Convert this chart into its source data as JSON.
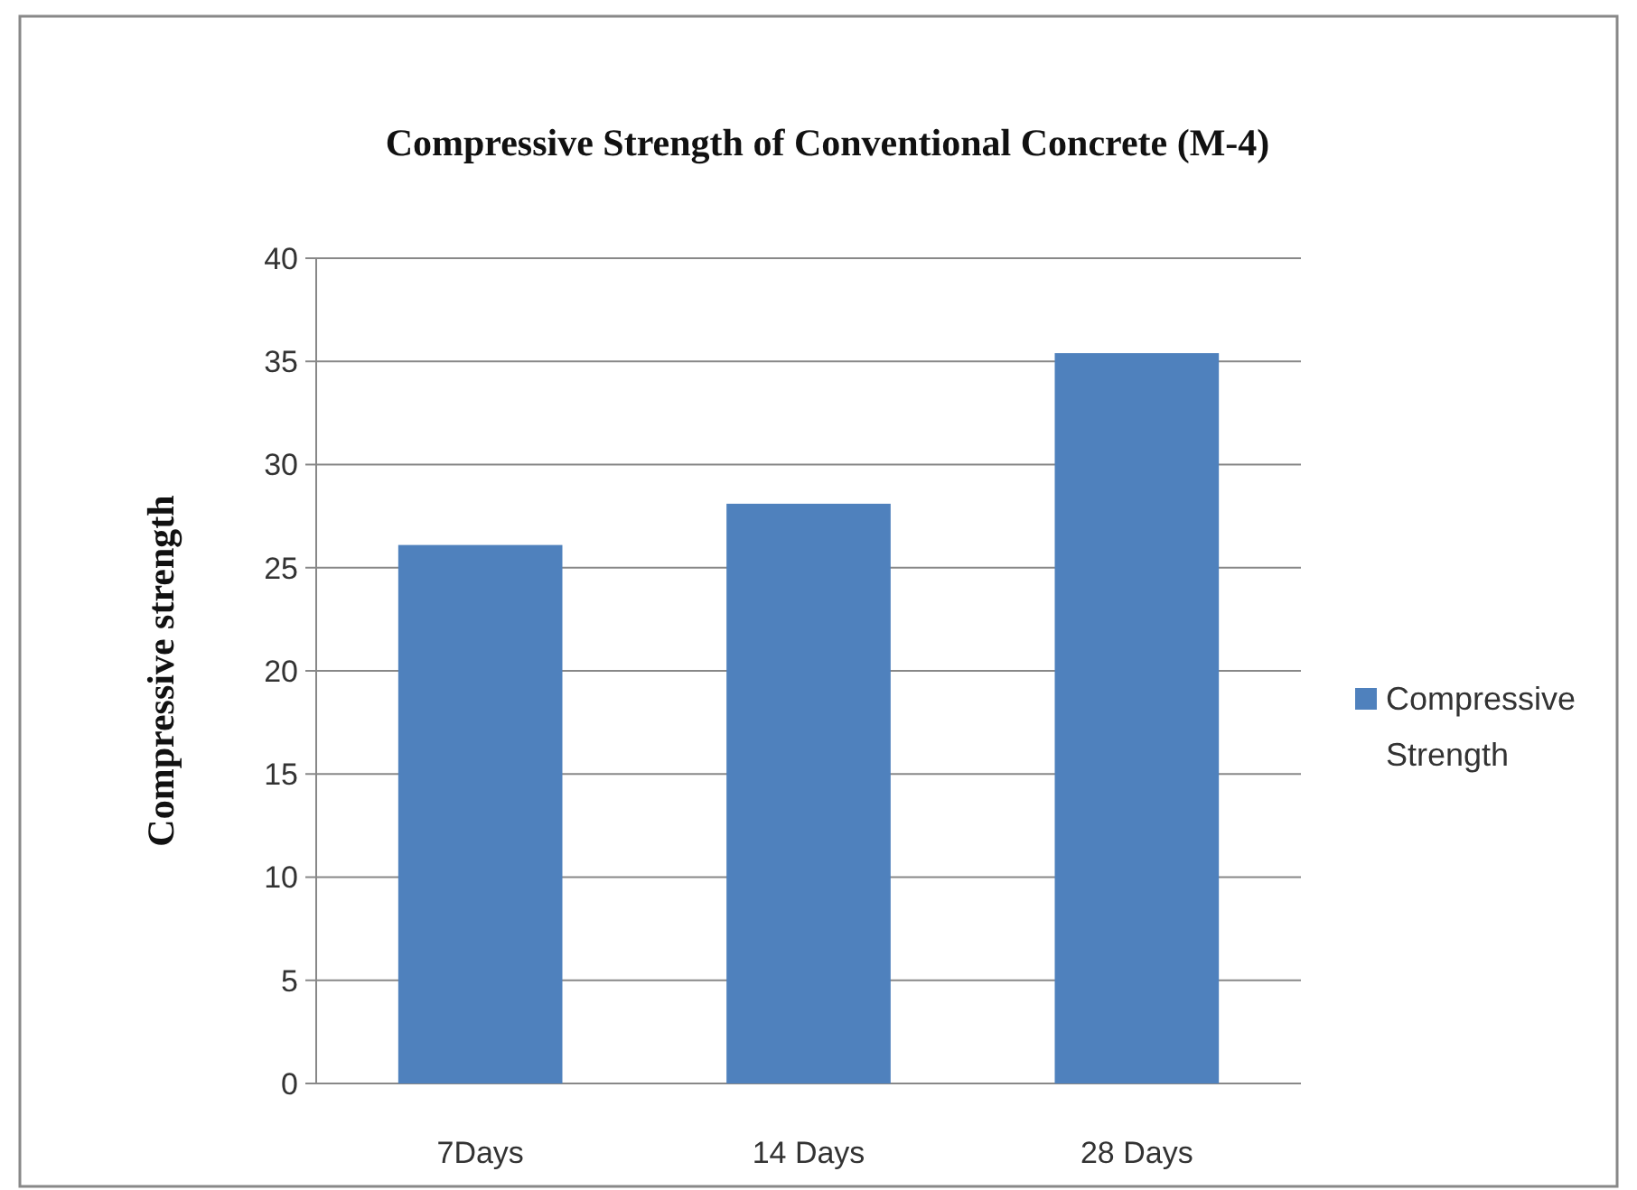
{
  "chart_data": {
    "type": "bar",
    "title": "Compressive Strength of Conventional Concrete (M-4)",
    "ylabel": "Compressive strength",
    "categories": [
      "7Days",
      "14 Days",
      "28 Days"
    ],
    "series": [
      {
        "name": "Compressive Strength",
        "color": "#4f81bd",
        "values": [
          26.1,
          28.1,
          35.4
        ]
      }
    ],
    "ylim": [
      0,
      40
    ],
    "yticks": [
      0,
      5,
      10,
      15,
      20,
      25,
      30,
      35,
      40
    ],
    "grid": "y",
    "legend": "right"
  }
}
